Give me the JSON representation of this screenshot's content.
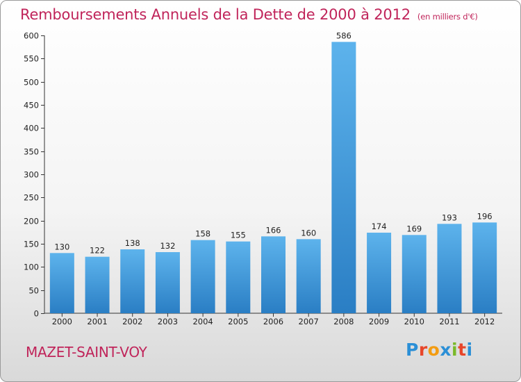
{
  "title": "Remboursements Annuels de la Dette de 2000 à 2012",
  "unit": "(en milliers d'€)",
  "commune": "MAZET-SAINT-VOY",
  "logo": {
    "letters": [
      "P",
      "r",
      "o",
      "x",
      "i",
      "t",
      "i"
    ],
    "colors": [
      "#2b8fd6",
      "#e8462a",
      "#f39c12",
      "#2b8fd6",
      "#7ab929",
      "#e8462a",
      "#2b8fd6"
    ]
  },
  "colors": {
    "title": "#c0245a",
    "bar": "#3a8fd0"
  },
  "chart_data": {
    "type": "bar",
    "title": "Remboursements Annuels de la Dette de 2000 à 2012",
    "ylabel": "(en milliers d'€)",
    "categories": [
      "2000",
      "2001",
      "2002",
      "2003",
      "2004",
      "2005",
      "2006",
      "2007",
      "2008",
      "2009",
      "2010",
      "2011",
      "2012"
    ],
    "values": [
      130,
      122,
      138,
      132,
      158,
      155,
      166,
      160,
      586,
      174,
      169,
      193,
      196
    ],
    "ylim": [
      0,
      600
    ],
    "yticks": [
      0,
      50,
      100,
      150,
      200,
      250,
      300,
      350,
      400,
      450,
      500,
      550,
      600
    ],
    "grid": false,
    "legend": "none"
  }
}
